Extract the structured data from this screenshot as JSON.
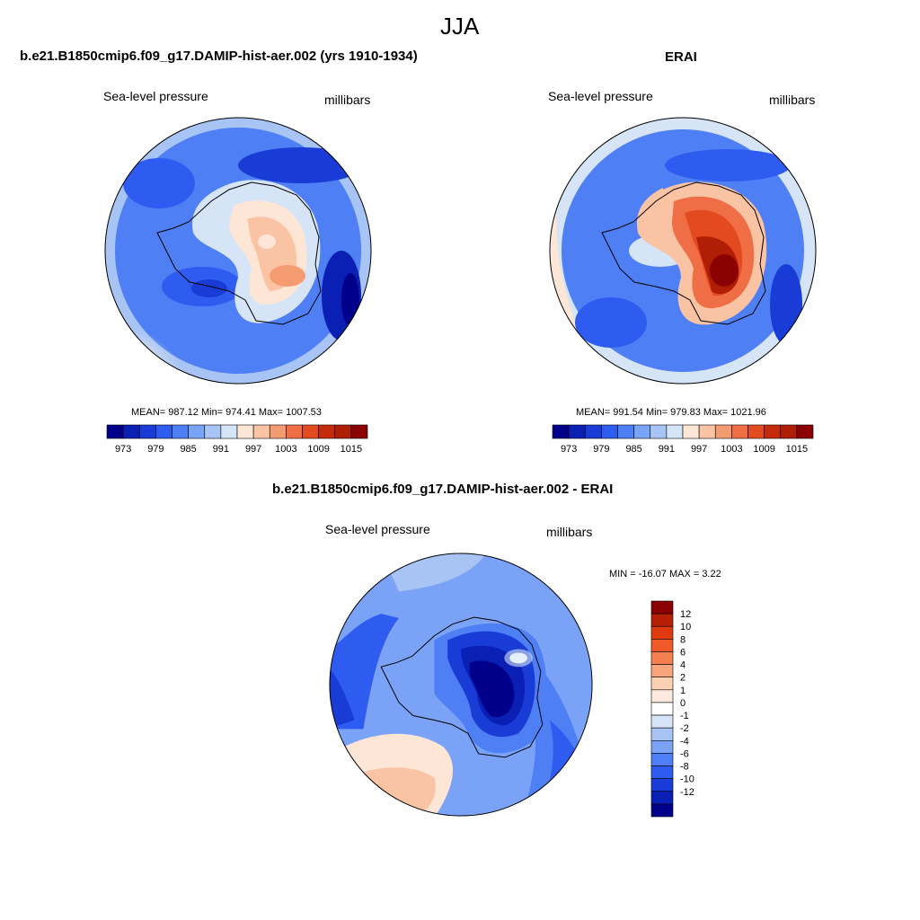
{
  "figure": {
    "title": "JJA"
  },
  "panels": [
    {
      "title": "b.e21.B1850cmip6.f09_g17.DAMIP-hist-aer.002 (yrs 1910-1934)",
      "variable": "Sea-level pressure",
      "units": "millibars",
      "stats": "MEAN= 987.12  Min= 974.41  Max= 1007.53"
    },
    {
      "title": "ERAI",
      "variable": "Sea-level pressure",
      "units": "millibars",
      "stats": "MEAN= 991.54  Min= 979.83  Max= 1021.96"
    },
    {
      "title": "b.e21.B1850cmip6.f09_g17.DAMIP-hist-aer.002 - ERAI",
      "variable": "Sea-level pressure",
      "units": "millibars",
      "stats": "MIN = -16.07 MAX =   3.22"
    }
  ],
  "colorbars": {
    "field": {
      "labels": [
        "973",
        "979",
        "985",
        "991",
        "997",
        "1003",
        "1009",
        "1015"
      ],
      "colors": [
        "#00008b",
        "#0a1fb4",
        "#1a3cd6",
        "#2e5cf0",
        "#4e7ff5",
        "#7aa2f7",
        "#a8c4f5",
        "#d6e4f7",
        "#fde6d6",
        "#f9c3a4",
        "#f59b72",
        "#ef6e45",
        "#e44a1f",
        "#c52a0c",
        "#b01e06",
        "#8b0000"
      ]
    },
    "diff": {
      "labels": [
        "12",
        "10",
        "8",
        "6",
        "4",
        "2",
        "1",
        "0",
        "-1",
        "-2",
        "-4",
        "-6",
        "-8",
        "-10",
        "-12"
      ],
      "colors": [
        "#8b0000",
        "#b51f06",
        "#e03a10",
        "#f05a28",
        "#f5804f",
        "#f8a47c",
        "#fbd0b4",
        "#fde9de",
        "#ffffff",
        "#d6e4f7",
        "#a8c4f5",
        "#7aa2f7",
        "#4e7ff5",
        "#2e5cf0",
        "#1a3cd6",
        "#0a1fb4",
        "#00008b"
      ]
    }
  }
}
